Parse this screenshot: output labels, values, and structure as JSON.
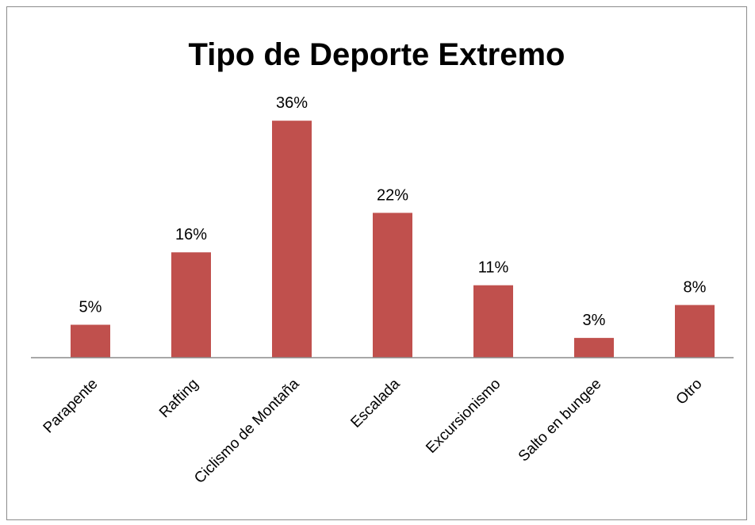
{
  "chart_data": {
    "type": "bar",
    "title": "Tipo de Deporte Extremo",
    "categories": [
      "Parapente",
      "Rafting",
      "Ciclismo de Montaña",
      "Escalada",
      "Excursionismo",
      "Salto en bungee",
      "Otro"
    ],
    "values": [
      5,
      16,
      36,
      22,
      11,
      3,
      8
    ],
    "data_labels": [
      "5%",
      "16%",
      "36%",
      "22%",
      "11%",
      "3%",
      "8%"
    ],
    "unit": "%",
    "ylim": [
      0,
      40
    ],
    "grid": false,
    "legend": "none",
    "bar_color": "#c0504d"
  }
}
